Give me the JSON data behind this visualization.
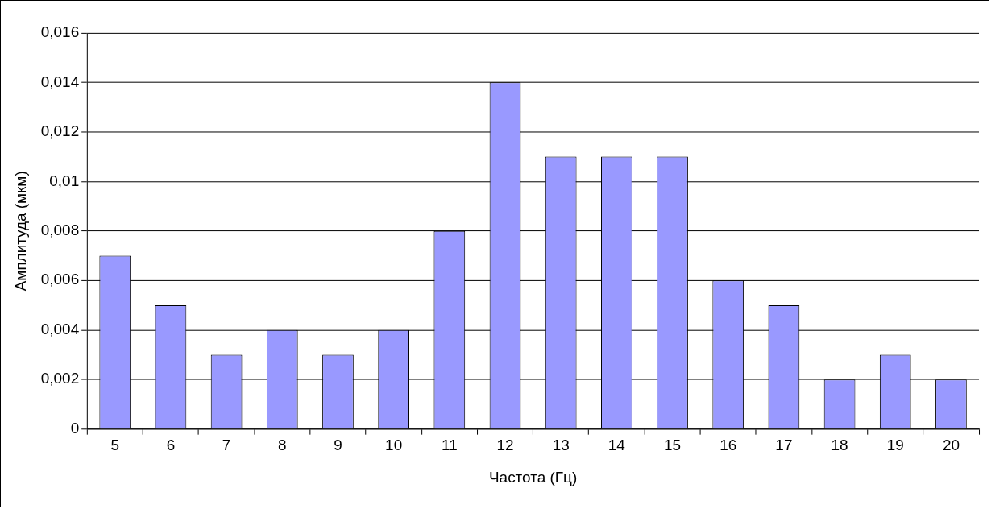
{
  "chart_data": {
    "type": "bar",
    "xlabel": "Частота (Гц)",
    "ylabel": "Амплитуда (мкм)",
    "categories": [
      "5",
      "6",
      "7",
      "8",
      "9",
      "10",
      "11",
      "12",
      "13",
      "14",
      "15",
      "16",
      "17",
      "18",
      "19",
      "20"
    ],
    "values": [
      0.007,
      0.005,
      0.003,
      0.004,
      0.003,
      0.004,
      0.008,
      0.014,
      0.011,
      0.011,
      0.011,
      0.006,
      0.005,
      0.002,
      0.003,
      0.002
    ],
    "color": "#9999ff",
    "ylim": [
      0,
      0.016
    ],
    "yticks": [
      0,
      {
        "value": 0.002,
        "label": "0,002"
      },
      {
        "value": 0.004,
        "label": "0,004"
      },
      {
        "value": 0.006,
        "label": "0,006"
      },
      {
        "value": 0.008,
        "label": "0,008"
      },
      {
        "value": 0.01,
        "label": "0,01"
      },
      {
        "value": 0.012,
        "label": "0,012"
      },
      {
        "value": 0.014,
        "label": "0,014"
      },
      {
        "value": 0.016,
        "label": "0,016"
      }
    ],
    "grid": "y",
    "legend": false
  }
}
